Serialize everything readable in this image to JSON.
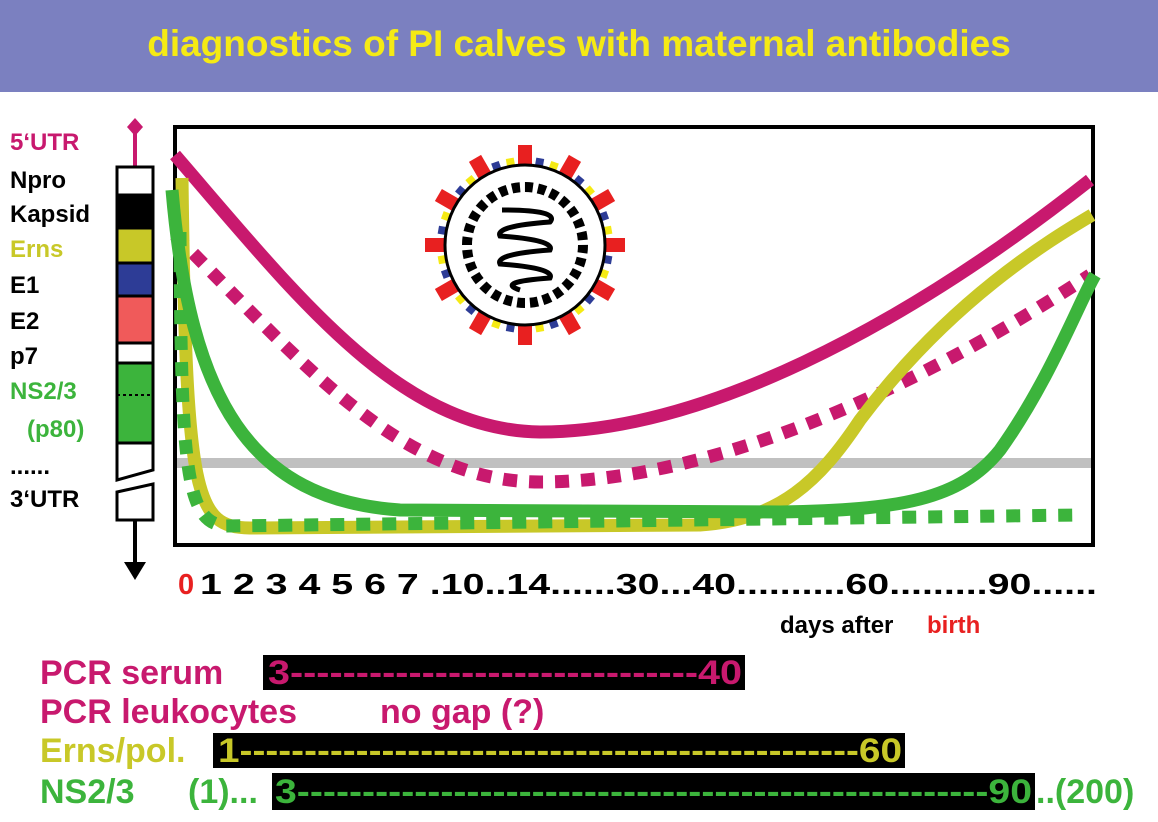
{
  "header": {
    "title": "diagnostics of PI calves with maternal antibodies"
  },
  "genome": {
    "labels": [
      {
        "text": "5‘UTR",
        "color": "#c8196e"
      },
      {
        "text": "Npro",
        "color": "#000000"
      },
      {
        "text": "Kapsid",
        "color": "#000000"
      },
      {
        "text": "Erns",
        "color": "#c8c828"
      },
      {
        "text": "E1",
        "color": "#000000"
      },
      {
        "text": "E2",
        "color": "#000000"
      },
      {
        "text": "p7",
        "color": "#000000"
      },
      {
        "text": "NS2/3",
        "color": "#3cb43c"
      },
      {
        "text": "(p80)",
        "color": "#3cb43c"
      },
      {
        "text": "......",
        "color": "#000000"
      },
      {
        "text": "3‘UTR",
        "color": "#000000"
      }
    ]
  },
  "timeline": {
    "start": "0",
    "ticks": "1 2 3 4 5 6 7 .10..14......30...40..........60.........90......",
    "caption": "days after",
    "caption_highlight": "birth"
  },
  "rows": [
    {
      "label": "PCR serum",
      "bar": "3-------------------------------40"
    },
    {
      "label": "PCR leukocytes",
      "note": "no gap (?)"
    },
    {
      "label": "Erns/pol.",
      "bar": "1------------------------------------------------60"
    },
    {
      "label": "NS2/3",
      "prefix": "(1)...",
      "bar": "3-----------------------------------------------------90",
      "suffix": "..(200)"
    }
  ]
}
